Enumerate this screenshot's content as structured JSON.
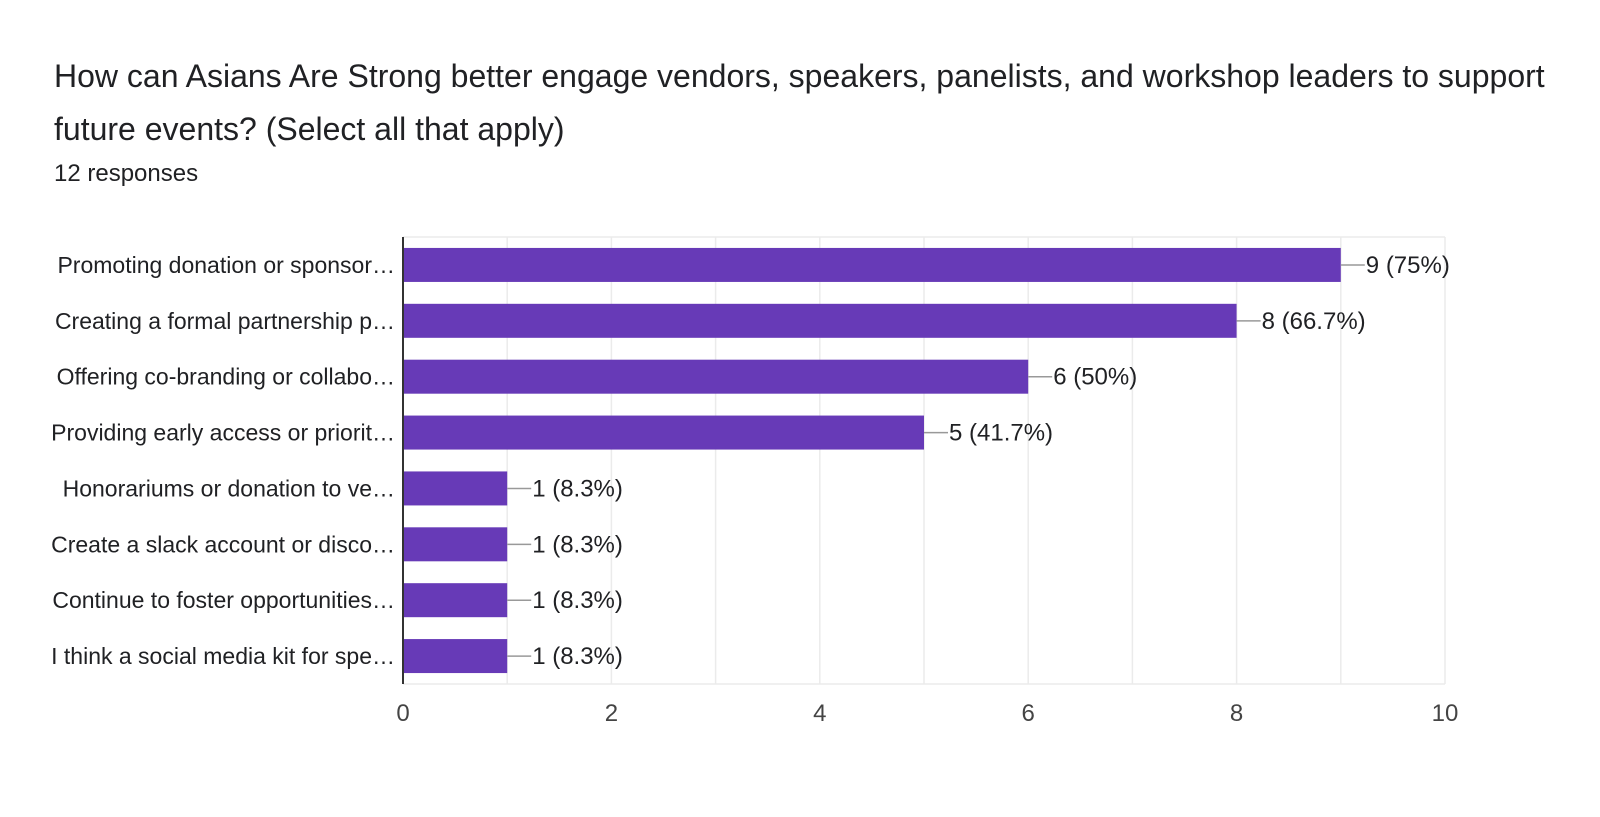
{
  "question": {
    "title": "How can Asians Are Strong better engage vendors, speakers, panelists, and workshop leaders to support future events? (Select all that apply)",
    "response_count": "12 responses"
  },
  "colors": {
    "bar": "#673ab7",
    "grid": "#ebebeb",
    "axis": "#333333",
    "text": "#202124"
  },
  "chart_data": {
    "type": "bar",
    "orientation": "horizontal",
    "title": "",
    "xlabel": "",
    "ylabel": "",
    "categories": [
      "Promoting donation or sponsor…",
      "Creating a formal partnership p…",
      "Offering co-branding or collabo…",
      "Providing early access or priorit…",
      "Honorariums or donation to ve…",
      "Create a slack account or disco…",
      "Continue to foster opportunities…",
      "I think a social media kit for spe…"
    ],
    "values": [
      9,
      8,
      6,
      5,
      1,
      1,
      1,
      1
    ],
    "data_labels": [
      "9 (75%)",
      "8 (66.7%)",
      "6 (50%)",
      "5 (41.7%)",
      "1 (8.3%)",
      "1 (8.3%)",
      "1 (8.3%)",
      "1 (8.3%)"
    ],
    "xlim": [
      0,
      10
    ],
    "x_ticks": [
      0,
      2,
      4,
      6,
      8,
      10
    ],
    "grid": true
  }
}
